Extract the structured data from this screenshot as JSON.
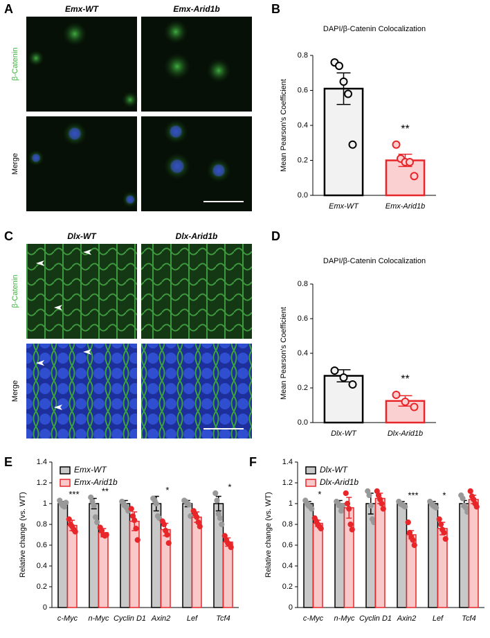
{
  "panel_labels": [
    "A",
    "B",
    "C",
    "D",
    "E",
    "F"
  ],
  "image_panels": [
    {
      "columns": [
        "Emx-WT",
        "Emx-Arid1b"
      ],
      "rows": [
        "β-Catenin",
        "Merge"
      ]
    },
    {
      "columns": [
        "Dlx-WT",
        "Dlx-Arid1b"
      ],
      "rows": [
        "β-Catenin",
        "Merge"
      ]
    }
  ],
  "chart_data": [
    {
      "type": "bar",
      "title": "DAPI/β-Catenin Colocalization",
      "ylabel": "Mean Pearson's Coefficient",
      "categories": [
        "Emx-WT",
        "Emx-Arid1b"
      ],
      "values": [
        0.61,
        0.2
      ],
      "errors": [
        0.09,
        0.035
      ],
      "points": [
        [
          0.76,
          0.74,
          0.65,
          0.58,
          0.29
        ],
        [
          0.29,
          0.21,
          0.19,
          0.19,
          0.11
        ]
      ],
      "colors": [
        "#f2f2f2",
        "#fbd0d0"
      ],
      "edge_colors": [
        "#000000",
        "#e8262a"
      ],
      "annotations": [
        null,
        "**"
      ],
      "ylim": [
        0,
        0.8
      ],
      "yticks": [
        {
          "value": 0,
          "label": "0.0"
        },
        0.2,
        0.4,
        0.6,
        0.8
      ]
    },
    {
      "type": "bar",
      "title": "DAPI/β-Catenin Colocalization",
      "ylabel": "Mean Pearson's Coefficient",
      "categories": [
        "Dlx-WT",
        "Dlx-Arid1b"
      ],
      "values": [
        0.27,
        0.125
      ],
      "errors": [
        0.035,
        0.03
      ],
      "points": [
        [
          0.3,
          0.26,
          0.22
        ],
        [
          0.16,
          0.12,
          0.09
        ]
      ],
      "colors": [
        "#f2f2f2",
        "#fbd0d0"
      ],
      "edge_colors": [
        "#000000",
        "#e8262a"
      ],
      "annotations": [
        null,
        "**"
      ],
      "ylim": [
        0,
        0.8
      ],
      "yticks": [
        {
          "value": 0,
          "label": "0.0"
        },
        0.2,
        0.4,
        0.6,
        0.8
      ]
    },
    {
      "type": "grouped_bar",
      "ylabel": "Relative change (vs. WT)",
      "legend": "upper left",
      "categories": [
        "c-Myc",
        "n-Myc",
        "Cyclin D1",
        "Axin2",
        "Lef",
        "Tcf4"
      ],
      "series": [
        {
          "name": "Emx-WT",
          "color": "#c8c8c8",
          "edge_color": "#000000",
          "point_color": "#999999",
          "values": [
            1,
            1,
            1,
            1,
            1,
            1
          ],
          "errors": [
            0.02,
            0.05,
            0.03,
            0.07,
            0.03,
            0.07
          ],
          "points": [
            [
              1.03,
              1.0,
              0.98,
              0.97,
              1.01
            ],
            [
              1.06,
              1.02,
              0.98,
              0.87,
              0.82
            ],
            [
              1.02,
              1.0,
              0.98,
              0.96,
              0.93
            ],
            [
              1.05,
              1.03,
              1.0,
              0.88,
              0.86
            ],
            [
              1.03,
              1.02,
              1.0,
              0.99,
              0.88
            ],
            [
              1.1,
              1.03,
              0.9,
              0.86,
              0.8
            ]
          ]
        },
        {
          "name": "Emx-Arid1b",
          "color": "#f9c9c9",
          "edge_color": "#e8262a",
          "point_color": "#e8262a",
          "values": [
            0.79,
            0.72,
            0.83,
            0.75,
            0.87,
            0.63
          ],
          "errors": [
            0.05,
            0.04,
            0.09,
            0.06,
            0.05,
            0.04
          ],
          "points": [
            [
              0.85,
              0.8,
              0.78,
              0.75,
              0.73
            ],
            [
              0.77,
              0.74,
              0.7,
              0.69,
              0.7
            ],
            [
              0.95,
              0.88,
              0.84,
              0.76,
              0.65
            ],
            [
              0.83,
              0.8,
              0.74,
              0.7,
              0.62
            ],
            [
              0.93,
              0.9,
              0.87,
              0.82,
              0.78
            ],
            [
              0.69,
              0.65,
              0.62,
              0.61,
              0.58
            ]
          ]
        }
      ],
      "annotations": [
        "***",
        "**",
        null,
        "*",
        null,
        "*"
      ],
      "ylim": [
        0,
        1.4
      ],
      "yticks": [
        0,
        0.2,
        0.4,
        0.6,
        0.8,
        1,
        1.2,
        1.4
      ]
    },
    {
      "type": "grouped_bar",
      "ylabel": "Relative change (vs. WT)",
      "legend": "upper left",
      "categories": [
        "c-Myc",
        "n-Myc",
        "Cyclin D1",
        "Axin2",
        "Lef",
        "Tcf4"
      ],
      "series": [
        {
          "name": "Dlx-WT",
          "color": "#c8c8c8",
          "edge_color": "#000000",
          "point_color": "#999999",
          "values": [
            1,
            1,
            1,
            1,
            1,
            1
          ],
          "errors": [
            0.02,
            0.03,
            0.1,
            0.02,
            0.02,
            0.03
          ],
          "points": [
            [
              1.03,
              1.0,
              0.98,
              0.97,
              0.95
            ],
            [
              1.02,
              1.0,
              0.98,
              0.93,
              0.98
            ],
            [
              1.12,
              1.08,
              0.98,
              0.85,
              0.82
            ],
            [
              1.02,
              1.0,
              0.99,
              0.98,
              0.97
            ],
            [
              1.02,
              1.0,
              0.98,
              0.97,
              0.96
            ],
            [
              1.08,
              1.05,
              0.98,
              0.96,
              0.92
            ]
          ]
        },
        {
          "name": "Dlx-Arid1b",
          "color": "#f9c9c9",
          "edge_color": "#e8262a",
          "point_color": "#e8262a",
          "values": [
            0.81,
            0.96,
            1.05,
            0.7,
            0.76,
            1.04
          ],
          "errors": [
            0.03,
            0.1,
            0.05,
            0.04,
            0.06,
            0.04
          ],
          "points": [
            [
              0.86,
              0.83,
              0.8,
              0.78,
              0.76
            ],
            [
              1.1,
              1.0,
              0.95,
              0.8,
              0.75
            ],
            [
              1.12,
              1.08,
              1.04,
              1.0,
              0.95
            ],
            [
              0.82,
              0.72,
              0.68,
              0.65,
              0.6
            ],
            [
              0.85,
              0.8,
              0.75,
              0.72,
              0.66
            ],
            [
              1.12,
              1.07,
              1.04,
              1.0,
              0.97
            ]
          ]
        }
      ],
      "annotations": [
        "*",
        null,
        null,
        "***",
        "*",
        null
      ],
      "ylim": [
        0,
        1.4
      ],
      "yticks": [
        0,
        0.2,
        0.4,
        0.6,
        0.8,
        1,
        1.2,
        1.4
      ]
    }
  ]
}
